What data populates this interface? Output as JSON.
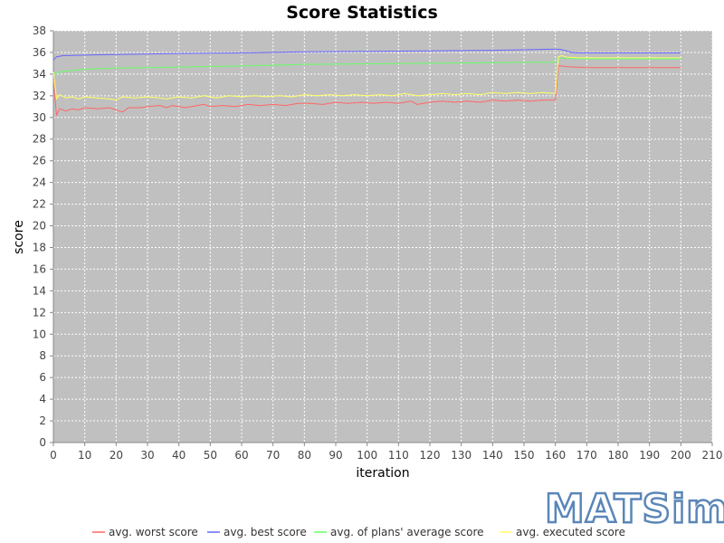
{
  "chart_data": {
    "type": "line",
    "title": "Score Statistics",
    "xlabel": "iteration",
    "ylabel": "score",
    "xlim": [
      0,
      210
    ],
    "ylim": [
      0,
      38
    ],
    "xticks": [
      0,
      10,
      20,
      30,
      40,
      50,
      60,
      70,
      80,
      90,
      100,
      110,
      120,
      130,
      140,
      150,
      160,
      170,
      180,
      190,
      200,
      210
    ],
    "yticks": [
      0,
      2,
      4,
      6,
      8,
      10,
      12,
      14,
      16,
      18,
      20,
      22,
      24,
      26,
      28,
      30,
      32,
      34,
      36,
      38
    ],
    "grid": true,
    "legend_position": "bottom",
    "series": [
      {
        "name": "avg. worst score",
        "color": "#ff6666",
        "points": [
          [
            0,
            33.4
          ],
          [
            1,
            30.2
          ],
          [
            2,
            30.8
          ],
          [
            4,
            30.6
          ],
          [
            6,
            30.8
          ],
          [
            8,
            30.7
          ],
          [
            10,
            30.9
          ],
          [
            14,
            30.8
          ],
          [
            18,
            30.9
          ],
          [
            20,
            30.7
          ],
          [
            22,
            30.5
          ],
          [
            24,
            30.9
          ],
          [
            28,
            30.9
          ],
          [
            30,
            31.0
          ],
          [
            34,
            31.1
          ],
          [
            36,
            30.9
          ],
          [
            38,
            31.1
          ],
          [
            42,
            30.9
          ],
          [
            44,
            31.0
          ],
          [
            48,
            31.2
          ],
          [
            50,
            31.0
          ],
          [
            54,
            31.1
          ],
          [
            58,
            31.0
          ],
          [
            62,
            31.2
          ],
          [
            66,
            31.1
          ],
          [
            70,
            31.2
          ],
          [
            74,
            31.1
          ],
          [
            78,
            31.3
          ],
          [
            82,
            31.3
          ],
          [
            86,
            31.2
          ],
          [
            90,
            31.4
          ],
          [
            94,
            31.3
          ],
          [
            98,
            31.4
          ],
          [
            102,
            31.3
          ],
          [
            106,
            31.4
          ],
          [
            110,
            31.3
          ],
          [
            114,
            31.5
          ],
          [
            116,
            31.2
          ],
          [
            120,
            31.4
          ],
          [
            124,
            31.5
          ],
          [
            128,
            31.4
          ],
          [
            132,
            31.5
          ],
          [
            136,
            31.4
          ],
          [
            140,
            31.6
          ],
          [
            144,
            31.5
          ],
          [
            148,
            31.6
          ],
          [
            152,
            31.5
          ],
          [
            156,
            31.6
          ],
          [
            160,
            31.6
          ],
          [
            161,
            34.8
          ],
          [
            163,
            34.7
          ],
          [
            166,
            34.65
          ],
          [
            170,
            34.6
          ],
          [
            180,
            34.6
          ],
          [
            190,
            34.6
          ],
          [
            200,
            34.6
          ]
        ]
      },
      {
        "name": "avg. best score",
        "color": "#6666ff",
        "points": [
          [
            0,
            35.3
          ],
          [
            1,
            35.6
          ],
          [
            3,
            35.7
          ],
          [
            10,
            35.75
          ],
          [
            20,
            35.8
          ],
          [
            40,
            35.9
          ],
          [
            60,
            35.95
          ],
          [
            80,
            36.05
          ],
          [
            100,
            36.1
          ],
          [
            120,
            36.15
          ],
          [
            140,
            36.2
          ],
          [
            150,
            36.25
          ],
          [
            158,
            36.3
          ],
          [
            161,
            36.3
          ],
          [
            163,
            36.2
          ],
          [
            165,
            36.0
          ],
          [
            168,
            35.95
          ],
          [
            180,
            35.95
          ],
          [
            190,
            35.95
          ],
          [
            200,
            35.95
          ]
        ]
      },
      {
        "name": "avg. of plans' average score",
        "color": "#66ff66",
        "points": [
          [
            0,
            34.0
          ],
          [
            2,
            34.2
          ],
          [
            5,
            34.3
          ],
          [
            10,
            34.45
          ],
          [
            20,
            34.55
          ],
          [
            40,
            34.65
          ],
          [
            60,
            34.75
          ],
          [
            80,
            34.9
          ],
          [
            100,
            34.95
          ],
          [
            120,
            35.0
          ],
          [
            140,
            35.05
          ],
          [
            150,
            35.1
          ],
          [
            160,
            35.1
          ],
          [
            161,
            35.5
          ],
          [
            163,
            35.45
          ],
          [
            170,
            35.4
          ],
          [
            180,
            35.4
          ],
          [
            190,
            35.4
          ],
          [
            200,
            35.4
          ]
        ]
      },
      {
        "name": "avg. executed score",
        "color": "#ffff66",
        "points": [
          [
            0,
            34.2
          ],
          [
            1,
            31.7
          ],
          [
            2,
            32.1
          ],
          [
            4,
            31.8
          ],
          [
            6,
            31.9
          ],
          [
            8,
            31.7
          ],
          [
            10,
            31.9
          ],
          [
            14,
            31.8
          ],
          [
            18,
            31.7
          ],
          [
            20,
            31.6
          ],
          [
            22,
            31.9
          ],
          [
            26,
            31.8
          ],
          [
            30,
            31.9
          ],
          [
            34,
            31.8
          ],
          [
            36,
            31.7
          ],
          [
            40,
            31.9
          ],
          [
            44,
            31.8
          ],
          [
            48,
            32.0
          ],
          [
            52,
            31.8
          ],
          [
            56,
            32.0
          ],
          [
            60,
            31.9
          ],
          [
            64,
            32.0
          ],
          [
            68,
            31.9
          ],
          [
            72,
            32.0
          ],
          [
            76,
            31.9
          ],
          [
            80,
            32.1
          ],
          [
            84,
            32.0
          ],
          [
            88,
            32.1
          ],
          [
            92,
            32.0
          ],
          [
            96,
            32.1
          ],
          [
            100,
            32.0
          ],
          [
            104,
            32.1
          ],
          [
            108,
            32.0
          ],
          [
            112,
            32.2
          ],
          [
            116,
            32.0
          ],
          [
            120,
            32.1
          ],
          [
            124,
            32.2
          ],
          [
            128,
            32.1
          ],
          [
            132,
            32.2
          ],
          [
            136,
            32.1
          ],
          [
            140,
            32.3
          ],
          [
            144,
            32.2
          ],
          [
            148,
            32.3
          ],
          [
            152,
            32.2
          ],
          [
            156,
            32.3
          ],
          [
            160,
            32.2
          ],
          [
            161,
            35.6
          ],
          [
            162,
            35.7
          ],
          [
            164,
            35.55
          ],
          [
            168,
            35.5
          ],
          [
            180,
            35.5
          ],
          [
            190,
            35.5
          ],
          [
            200,
            35.5
          ]
        ]
      }
    ]
  },
  "logo": {
    "text": "MATSim"
  }
}
